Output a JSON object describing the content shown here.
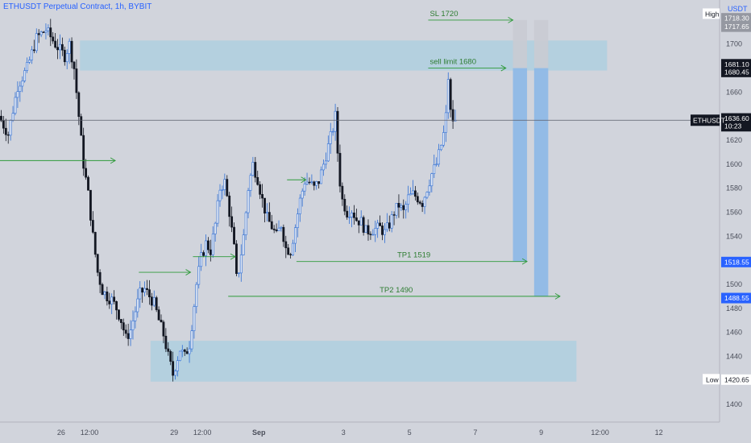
{
  "chart_data": {
    "type": "candlestick",
    "title": "ETHUSDT Perpetual Contract, 1h, BYBIT",
    "currency": "USDT",
    "ylim": [
      1390,
      1730
    ],
    "y_ticks": [
      1400,
      1420,
      1440,
      1460,
      1480,
      1500,
      1520,
      1540,
      1560,
      1580,
      1600,
      1620,
      1640,
      1660,
      1680,
      1700
    ],
    "x_ticks": [
      {
        "label": "26",
        "bar": 26
      },
      {
        "label": "12:00",
        "bar": 38
      },
      {
        "label": "29",
        "bar": 74
      },
      {
        "label": "12:00",
        "bar": 86
      },
      {
        "label": "Sep",
        "bar": 110
      },
      {
        "label": "3",
        "bar": 146
      },
      {
        "label": "5",
        "bar": 174
      },
      {
        "label": "7",
        "bar": 202
      },
      {
        "label": "9",
        "bar": 230
      },
      {
        "label": "12:00",
        "bar": 255
      },
      {
        "label": "12",
        "bar": 280
      }
    ],
    "x_range_bars": [
      0,
      305
    ],
    "price_path": [
      [
        0,
        1640
      ],
      [
        4,
        1625
      ],
      [
        8,
        1665
      ],
      [
        12,
        1680
      ],
      [
        16,
        1705
      ],
      [
        20,
        1712
      ],
      [
        24,
        1700
      ],
      [
        28,
        1690
      ],
      [
        30,
        1700
      ],
      [
        32,
        1680
      ],
      [
        34,
        1640
      ],
      [
        36,
        1600
      ],
      [
        38,
        1575
      ],
      [
        40,
        1540
      ],
      [
        42,
        1510
      ],
      [
        44,
        1495
      ],
      [
        46,
        1490
      ],
      [
        48,
        1487
      ],
      [
        50,
        1480
      ],
      [
        52,
        1470
      ],
      [
        54,
        1455
      ],
      [
        56,
        1462
      ],
      [
        58,
        1478
      ],
      [
        60,
        1492
      ],
      [
        62,
        1496
      ],
      [
        64,
        1490
      ],
      [
        66,
        1484
      ],
      [
        68,
        1470
      ],
      [
        70,
        1458
      ],
      [
        72,
        1440
      ],
      [
        74,
        1425
      ],
      [
        75,
        1432
      ],
      [
        77,
        1446
      ],
      [
        79,
        1440
      ],
      [
        81,
        1450
      ],
      [
        82,
        1466
      ],
      [
        84,
        1500
      ],
      [
        86,
        1522
      ],
      [
        88,
        1534
      ],
      [
        90,
        1528
      ],
      [
        92,
        1550
      ],
      [
        94,
        1580
      ],
      [
        96,
        1585
      ],
      [
        98,
        1560
      ],
      [
        100,
        1530
      ],
      [
        101,
        1505
      ],
      [
        102,
        1512
      ],
      [
        104,
        1540
      ],
      [
        106,
        1580
      ],
      [
        108,
        1600
      ],
      [
        110,
        1588
      ],
      [
        112,
        1570
      ],
      [
        114,
        1555
      ],
      [
        116,
        1548
      ],
      [
        118,
        1540
      ],
      [
        120,
        1550
      ],
      [
        122,
        1530
      ],
      [
        124,
        1528
      ],
      [
        126,
        1548
      ],
      [
        128,
        1570
      ],
      [
        130,
        1586
      ],
      [
        132,
        1585
      ],
      [
        134,
        1580
      ],
      [
        136,
        1586
      ],
      [
        138,
        1600
      ],
      [
        140,
        1615
      ],
      [
        142,
        1630
      ],
      [
        143,
        1640
      ],
      [
        144,
        1610
      ],
      [
        145,
        1585
      ],
      [
        146,
        1570
      ],
      [
        148,
        1560
      ],
      [
        150,
        1562
      ],
      [
        152,
        1554
      ],
      [
        154,
        1552
      ],
      [
        156,
        1544
      ],
      [
        158,
        1545
      ],
      [
        160,
        1546
      ],
      [
        162,
        1547
      ],
      [
        164,
        1543
      ],
      [
        166,
        1550
      ],
      [
        168,
        1560
      ],
      [
        170,
        1566
      ],
      [
        172,
        1560
      ],
      [
        174,
        1572
      ],
      [
        176,
        1575
      ],
      [
        178,
        1572
      ],
      [
        180,
        1568
      ],
      [
        182,
        1580
      ],
      [
        184,
        1592
      ],
      [
        186,
        1600
      ],
      [
        188,
        1616
      ],
      [
        189,
        1625
      ],
      [
        190,
        1640
      ],
      [
        191,
        1672
      ],
      [
        192,
        1643
      ],
      [
        193,
        1637
      ]
    ],
    "current_price": 1636.6,
    "countdown": "10:23",
    "symbol": "ETHUSDT",
    "high": {
      "label": "High",
      "value": 1721.25
    },
    "low": {
      "label": "Low",
      "value": 1420.65
    },
    "price_labels": [
      {
        "value": 1718.3,
        "text": "1718.30"
      },
      {
        "value": 1717.65,
        "text": "1717.65"
      },
      {
        "value": 1681.1,
        "text": "1681.10"
      },
      {
        "value": 1680.45,
        "text": "1680.45"
      },
      {
        "value": 1518.55,
        "text": "1518.55"
      },
      {
        "value": 1488.55,
        "text": "1488.55"
      }
    ],
    "zones": [
      {
        "name": "supply-zone",
        "bar_from": 34,
        "bar_to": 258,
        "price_from": 1678,
        "price_to": 1703
      },
      {
        "name": "demand-zone",
        "bar_from": 64,
        "bar_to": 245,
        "price_from": 1419,
        "price_to": 1453
      }
    ],
    "annotations": [
      {
        "text": "SL  1720",
        "price": 1720,
        "bar_from": 182,
        "bar_to": 218
      },
      {
        "text": "sell limit 1680",
        "price": 1680,
        "bar_from": 182,
        "bar_to": 215
      },
      {
        "text": "TP1  1519",
        "price": 1519,
        "bar_from": 126,
        "bar_to": 224
      },
      {
        "text": "TP2 1490",
        "price": 1490,
        "bar_from": 97,
        "bar_to": 238
      }
    ],
    "arrows": [
      {
        "price": 1603,
        "bar_from": 0,
        "bar_to": 49
      },
      {
        "price": 1510,
        "bar_from": 59,
        "bar_to": 81
      },
      {
        "price": 1523,
        "bar_from": 82,
        "bar_to": 100
      },
      {
        "price": 1587,
        "bar_from": 122,
        "bar_to": 130
      }
    ],
    "positions": [
      {
        "bar_from": 218,
        "bar_to": 224,
        "entry": 1680,
        "target": 1519,
        "stop": 1720
      },
      {
        "bar_from": 227,
        "bar_to": 233,
        "entry": 1680,
        "target": 1490,
        "stop": 1720
      }
    ]
  }
}
